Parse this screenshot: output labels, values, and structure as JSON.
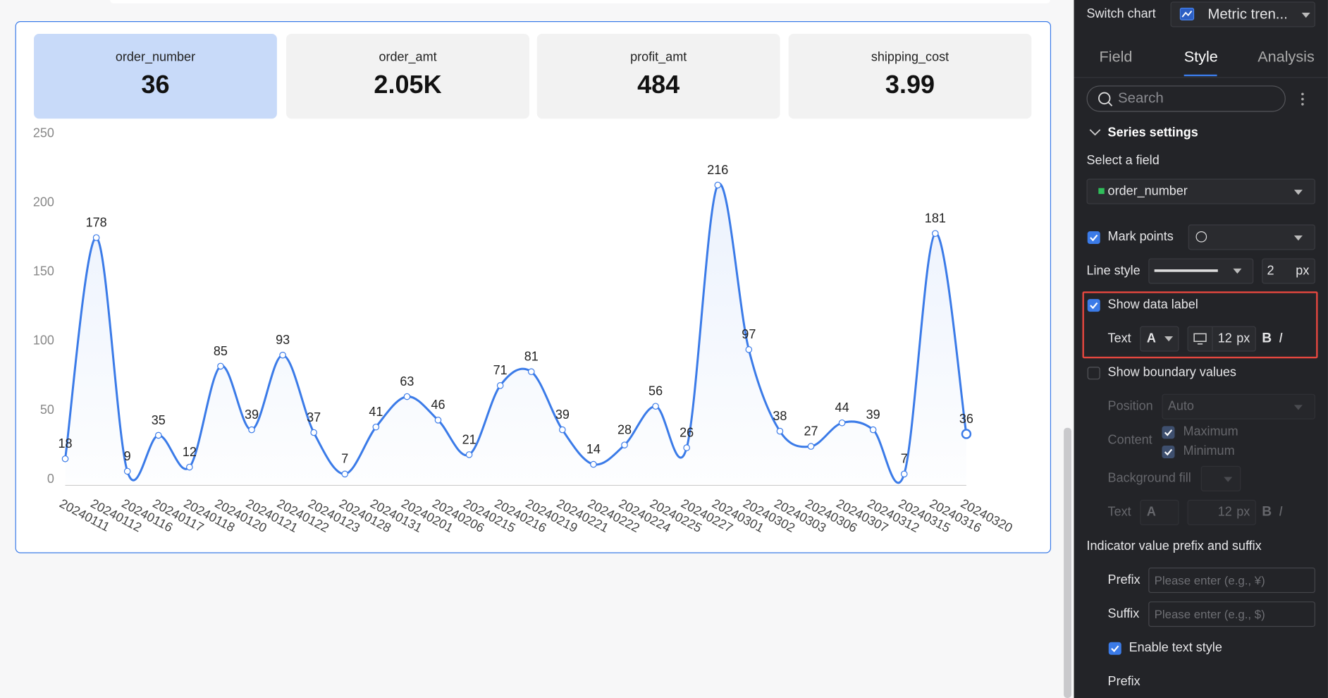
{
  "chart_data": {
    "type": "line",
    "categories": [
      "20240111",
      "20240112",
      "20240116",
      "20240117",
      "20240118",
      "20240120",
      "20240121",
      "20240122",
      "20240123",
      "20240128",
      "20240131",
      "20240201",
      "20240206",
      "20240215",
      "20240216",
      "20240219",
      "20240221",
      "20240222",
      "20240224",
      "20240225",
      "20240227",
      "20240301",
      "20240302",
      "20240303",
      "20240306",
      "20240307",
      "20240312",
      "20240315",
      "20240316",
      "20240320"
    ],
    "values": [
      18,
      178,
      9,
      35,
      12,
      85,
      39,
      93,
      37,
      7,
      41,
      63,
      46,
      21,
      71,
      81,
      39,
      14,
      28,
      56,
      26,
      216,
      97,
      38,
      27,
      44,
      39,
      7,
      181,
      36
    ],
    "color": "#3b7be8",
    "ylim": [
      0,
      250
    ],
    "yticks": [
      0,
      50,
      100,
      150,
      200,
      250
    ],
    "grid": false,
    "smooth": true,
    "area": true
  },
  "metric_cards": [
    {
      "label": "order_number",
      "value": "36"
    },
    {
      "label": "order_amt",
      "value": "2.05K"
    },
    {
      "label": "profit_amt",
      "value": "484"
    },
    {
      "label": "shipping_cost",
      "value": "3.99"
    }
  ],
  "panel": {
    "switch_chart": "Switch chart",
    "chart_type": "Metric tren...",
    "tabs": [
      "Field",
      "Style",
      "Analysis"
    ],
    "search_placeholder": "Search",
    "section": "Series settings",
    "select_field_label": "Select a field",
    "selected_field": "order_number",
    "mark_points": "Mark points",
    "line_style": "Line style",
    "line_width": "2",
    "unit": "px",
    "show_data_label": "Show data label",
    "text": "Text",
    "font_color": "A",
    "font_size": "12",
    "bold": "B",
    "italic": "I",
    "show_boundary": "Show boundary values",
    "position": "Position",
    "position_value": "Auto",
    "content": "Content",
    "maximum": "Maximum",
    "minimum": "Minimum",
    "background_fill": "Background fill",
    "prefix_suffix": "Indicator value prefix and suffix",
    "prefix": "Prefix",
    "prefix_placeholder": "Please enter (e.g., ¥)",
    "suffix": "Suffix",
    "suffix_placeholder": "Please enter (e.g., $)",
    "enable_text_style": "Enable text style"
  }
}
